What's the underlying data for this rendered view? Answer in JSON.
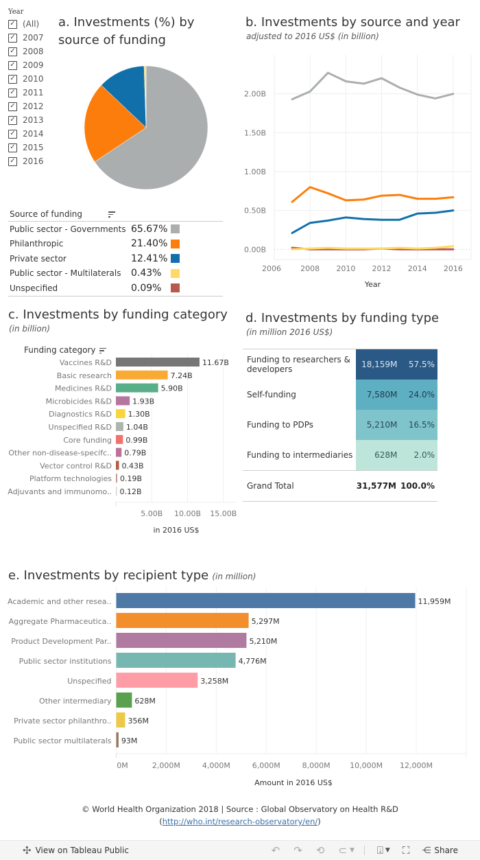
{
  "year_filter": {
    "label": "Year",
    "items": [
      {
        "label": "(All)",
        "checked": true
      },
      {
        "label": "2007",
        "checked": true
      },
      {
        "label": "2008",
        "checked": true
      },
      {
        "label": "2009",
        "checked": true
      },
      {
        "label": "2010",
        "checked": true
      },
      {
        "label": "2011",
        "checked": true
      },
      {
        "label": "2012",
        "checked": true
      },
      {
        "label": "2013",
        "checked": true
      },
      {
        "label": "2014",
        "checked": true
      },
      {
        "label": "2015",
        "checked": true
      },
      {
        "label": "2016",
        "checked": true
      }
    ]
  },
  "panel_a": {
    "title_line1": "a. Investments (%) by",
    "title_line2": "source of funding",
    "legend_header": "Source of funding"
  },
  "panel_b": {
    "title": "b. Investments by source and year",
    "subtitle": "adjusted to 2016 US$ (in billion)"
  },
  "panel_c": {
    "title": "c. Investments by funding category",
    "subtitle": "(in billion)",
    "header": "Funding category"
  },
  "panel_d": {
    "title": "d. Investments by funding type",
    "subtitle": "(in million 2016 US$)"
  },
  "panel_e": {
    "title": "e. Investments by recipient type",
    "subtitle": "(in million)"
  },
  "chart_data": [
    {
      "id": "a",
      "type": "pie",
      "title": "a. Investments (%) by source of funding",
      "categories": [
        "Public sector - Governments",
        "Philanthropic",
        "Private sector",
        "Public sector - Multilaterals",
        "Unspecified"
      ],
      "values": [
        65.67,
        21.4,
        12.41,
        0.43,
        0.09
      ],
      "labels": [
        "65.67%",
        "21.40%",
        "12.41%",
        "0.43%",
        "0.09%"
      ],
      "colors": [
        "#abaeaf",
        "#fc7d0b",
        "#1170aa",
        "#ffd966",
        "#b85a4b"
      ],
      "legend": "bottom"
    },
    {
      "id": "b",
      "type": "line",
      "title": "b. Investments by source and year",
      "subtitle": "adjusted to 2016 US$ (in billion)",
      "xlabel": "Year",
      "ylabel": "",
      "x": [
        2007,
        2008,
        2009,
        2010,
        2011,
        2012,
        2013,
        2014,
        2015,
        2016
      ],
      "xlim": [
        2006,
        2017
      ],
      "xticks": [
        "2006",
        "2008",
        "2010",
        "2012",
        "2014",
        "2016"
      ],
      "xtick_values": [
        2006,
        2008,
        2010,
        2012,
        2014,
        2016
      ],
      "ylim": [
        -0.13,
        2.5
      ],
      "yticks": [
        "0.00B",
        "0.50B",
        "1.00B",
        "1.50B",
        "2.00B"
      ],
      "ytick_values": [
        0,
        0.5,
        1.0,
        1.5,
        2.0
      ],
      "grid": true,
      "series": [
        {
          "name": "Public sector - Governments",
          "color": "#abaeaf",
          "values": [
            1.93,
            2.03,
            2.27,
            2.16,
            2.13,
            2.2,
            2.08,
            1.99,
            1.94,
            2.0
          ]
        },
        {
          "name": "Philanthropic",
          "color": "#fc7d0b",
          "values": [
            0.61,
            0.8,
            0.72,
            0.63,
            0.64,
            0.69,
            0.7,
            0.65,
            0.65,
            0.67
          ]
        },
        {
          "name": "Private sector",
          "color": "#1170aa",
          "values": [
            0.21,
            0.34,
            0.37,
            0.41,
            0.39,
            0.38,
            0.38,
            0.46,
            0.47,
            0.5
          ]
        },
        {
          "name": "Unspecified",
          "color": "#b85a4b",
          "values": [
            0.02,
            0.0,
            0.0,
            0.0,
            0.0,
            0.01,
            0.0,
            0.0,
            0.0,
            0.0
          ]
        },
        {
          "name": "Public sector - Multilaterals",
          "color": "#ffd966",
          "values": [
            0.0,
            0.01,
            0.02,
            0.01,
            0.01,
            0.01,
            0.02,
            0.01,
            0.02,
            0.04
          ]
        }
      ]
    },
    {
      "id": "c",
      "type": "bar",
      "orientation": "horizontal",
      "title": "c. Investments by funding category",
      "subtitle": "(in billion)",
      "xlabel": "in 2016 US$",
      "ylabel": "Funding category",
      "categories": [
        "Vaccines R&D",
        "Basic research",
        "Medicines R&D",
        "Microbicides R&D",
        "Diagnostics R&D",
        "Unspecified R&D",
        "Core funding",
        "Other non-disease-specifc..",
        "Vector control R&D",
        "Platform technologies",
        "Adjuvants and immunomo.."
      ],
      "values": [
        11.67,
        7.24,
        5.9,
        1.93,
        1.3,
        1.04,
        0.99,
        0.79,
        0.43,
        0.19,
        0.12
      ],
      "labels": [
        "11.67B",
        "7.24B",
        "5.90B",
        "1.93B",
        "1.30B",
        "1.04B",
        "0.99B",
        "0.79B",
        "0.43B",
        "0.19B",
        "0.12B"
      ],
      "colors": [
        "#767676",
        "#f9aa33",
        "#57ae89",
        "#b5779f",
        "#f9d43a",
        "#adb5ae",
        "#f2716b",
        "#bd7295",
        "#b35c46",
        "#c49a8a",
        "#d5d5d5"
      ],
      "xlim": [
        0,
        16.5
      ],
      "xticks": [
        "5.00B",
        "10.00B",
        "15.00B"
      ],
      "xtick_values": [
        5,
        10,
        15
      ]
    },
    {
      "id": "d",
      "type": "table",
      "title": "d. Investments by funding type",
      "subtitle": "(in million 2016 US$)",
      "rows": [
        {
          "name": "Funding to researchers & developers",
          "amount": "18,159M",
          "share": "57.5%",
          "color": "#2b5986",
          "text_color": "#d9e6f2"
        },
        {
          "name": "Self-funding",
          "amount": "7,580M",
          "share": "24.0%",
          "color": "#5fafc3",
          "text_color": "#1e3a4a"
        },
        {
          "name": "Funding to PDPs",
          "amount": "5,210M",
          "share": "16.5%",
          "color": "#7fc3cb",
          "text_color": "#2a4a55"
        },
        {
          "name": "Funding to intermediaries",
          "amount": "628M",
          "share": "2.0%",
          "color": "#bde5da",
          "text_color": "#3b5a55"
        }
      ],
      "total": {
        "name": "Grand Total",
        "amount": "31,577M",
        "share": "100.0%"
      }
    },
    {
      "id": "e",
      "type": "bar",
      "orientation": "horizontal",
      "title": "e. Investments by recipient type",
      "subtitle": "(in million)",
      "xlabel": "Amount in 2016 US$",
      "categories": [
        "Academic and other resea..",
        "Aggregate Pharmaceutica..",
        "Product Development Par..",
        "Public sector institutions",
        "Unspecified",
        "Other intermediary",
        "Private sector philanthro..",
        "Public sector multilaterals"
      ],
      "values": [
        11959,
        5297,
        5210,
        4776,
        3258,
        628,
        356,
        93
      ],
      "labels": [
        "11,959M",
        "5,297M",
        "5,210M",
        "4,776M",
        "3,258M",
        "628M",
        "356M",
        "93M"
      ],
      "colors": [
        "#4e79a7",
        "#f28e2b",
        "#b07aa1",
        "#76b7b2",
        "#ff9da7",
        "#59a14f",
        "#edc948",
        "#9c755f"
      ],
      "xlim": [
        0,
        14000
      ],
      "xticks": [
        "0M",
        "2,000M",
        "4,000M",
        "6,000M",
        "8,000M",
        "10,000M",
        "12,000M"
      ],
      "xtick_values": [
        0,
        2000,
        4000,
        6000,
        8000,
        10000,
        12000
      ]
    }
  ],
  "footer": {
    "copyright": "© World Health Organization 2018 | Source : Global Observatory on Health R&D",
    "link_open": "(",
    "link": "http://who.int/research-observatory/en/",
    "link_close": ")"
  },
  "toolbar": {
    "view_label": "View on Tableau Public",
    "share_label": "Share"
  }
}
